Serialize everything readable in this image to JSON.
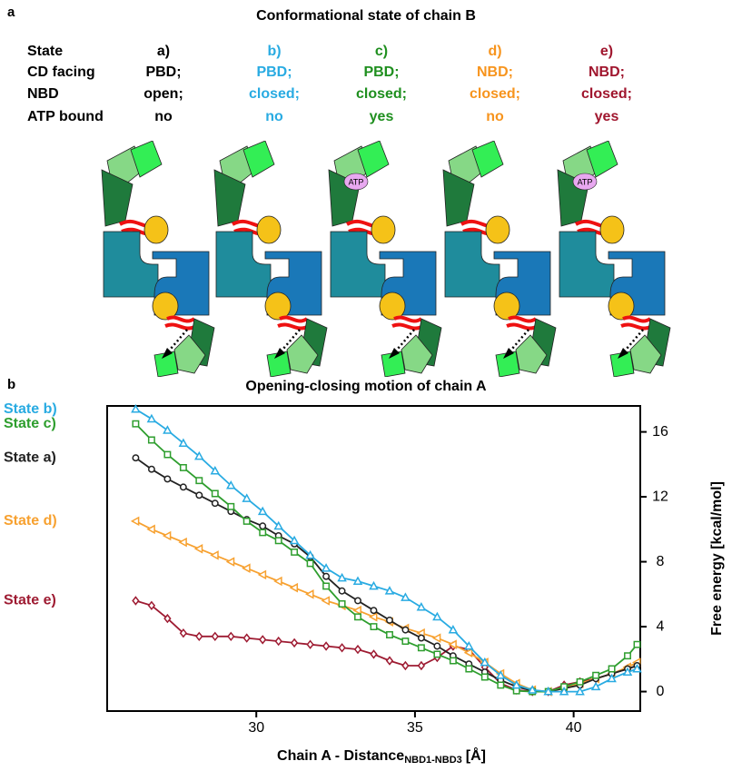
{
  "panel_a": {
    "label": "a",
    "title": "Conformational state of chain B",
    "row_labels": [
      "State",
      "CD facing",
      "NBD",
      "ATP bound"
    ],
    "columns": [
      {
        "color": "#000000",
        "cells": [
          "a)",
          "PBD;",
          "open;",
          "no"
        ]
      },
      {
        "color": "#29abe2",
        "cells": [
          "b)",
          "PBD;",
          "closed;",
          "no"
        ]
      },
      {
        "color": "#1f8f1f",
        "cells": [
          "c)",
          "PBD;",
          "closed;",
          "yes"
        ]
      },
      {
        "color": "#f7941d",
        "cells": [
          "d)",
          "NBD;",
          "closed;",
          "no"
        ]
      },
      {
        "color": "#a0162e",
        "cells": [
          "e)",
          "NBD;",
          "closed;",
          "yes"
        ]
      }
    ],
    "atp_label": "ATP"
  },
  "chart_data": {
    "type": "line",
    "label": "b",
    "title": "Opening-closing motion of chain A",
    "xlabel": "Chain A - Distance",
    "xlabel_subscript": "NBD1-NBD3",
    "xlabel_unit": "[Å]",
    "ylabel": "Free energy [kcal/mol]",
    "yaxis_side": "right",
    "x": [
      26.2,
      26.7,
      27.2,
      27.7,
      28.2,
      28.7,
      29.2,
      29.7,
      30.2,
      30.7,
      31.2,
      31.7,
      32.2,
      32.7,
      33.2,
      33.7,
      34.2,
      34.7,
      35.2,
      35.7,
      36.2,
      36.7,
      37.2,
      37.7,
      38.2,
      38.7,
      39.2,
      39.7,
      40.2,
      40.7,
      41.2,
      41.7,
      42.0
    ],
    "xlim": [
      25.3,
      42.1
    ],
    "xticks": [
      30,
      35,
      40
    ],
    "ylim": [
      -1.2,
      17.6
    ],
    "yticks": [
      0,
      4,
      8,
      12,
      16
    ],
    "series": [
      {
        "name": "State b)",
        "color": "#29abe2",
        "marker": "triangle-up",
        "values": [
          17.4,
          16.8,
          16.1,
          15.3,
          14.5,
          13.6,
          12.7,
          11.9,
          11.1,
          10.2,
          9.3,
          8.4,
          7.6,
          7.0,
          6.8,
          6.5,
          6.2,
          5.8,
          5.2,
          4.6,
          3.8,
          2.8,
          1.8,
          1.0,
          0.4,
          0.1,
          0.0,
          0.0,
          0.0,
          0.3,
          0.8,
          1.2,
          1.4
        ]
      },
      {
        "name": "State c)",
        "color": "#2e9e2e",
        "marker": "square",
        "values": [
          16.5,
          15.5,
          14.6,
          13.8,
          13.0,
          12.2,
          11.4,
          10.5,
          9.8,
          9.3,
          8.6,
          7.9,
          6.5,
          5.4,
          4.6,
          4.0,
          3.5,
          3.1,
          2.7,
          2.3,
          1.9,
          1.4,
          0.9,
          0.4,
          0.05,
          0.0,
          0.0,
          0.3,
          0.6,
          1.0,
          1.4,
          2.2,
          2.9
        ]
      },
      {
        "name": "State a)",
        "color": "#222222",
        "marker": "circle",
        "values": [
          14.4,
          13.7,
          13.1,
          12.6,
          12.1,
          11.6,
          11.1,
          10.6,
          10.2,
          9.6,
          9.1,
          8.3,
          7.1,
          6.2,
          5.6,
          5.0,
          4.4,
          3.8,
          3.3,
          2.8,
          2.2,
          1.7,
          1.2,
          0.7,
          0.3,
          0.05,
          0.0,
          0.2,
          0.4,
          0.8,
          1.1,
          1.4,
          1.6
        ]
      },
      {
        "name": "State d)",
        "color": "#f7a130",
        "marker": "triangle-left",
        "values": [
          10.5,
          10.0,
          9.6,
          9.2,
          8.8,
          8.4,
          8.0,
          7.6,
          7.2,
          6.8,
          6.4,
          6.0,
          5.6,
          5.3,
          5.0,
          4.6,
          4.3,
          3.9,
          3.6,
          3.3,
          2.9,
          2.4,
          1.8,
          1.1,
          0.5,
          0.1,
          0.0,
          0.2,
          0.5,
          0.8,
          1.1,
          1.5,
          1.8
        ]
      },
      {
        "name": "State e)",
        "color": "#9e1b32",
        "marker": "diamond",
        "values": [
          5.6,
          5.3,
          4.5,
          3.6,
          3.4,
          3.4,
          3.4,
          3.3,
          3.2,
          3.1,
          3.0,
          2.9,
          2.8,
          2.7,
          2.6,
          2.3,
          1.9,
          1.6,
          1.6,
          2.1,
          2.8,
          2.6,
          1.5,
          0.5,
          0.1,
          0.0,
          0.0,
          0.4,
          0.6,
          0.8,
          1.1,
          1.4,
          1.6
        ]
      }
    ]
  }
}
